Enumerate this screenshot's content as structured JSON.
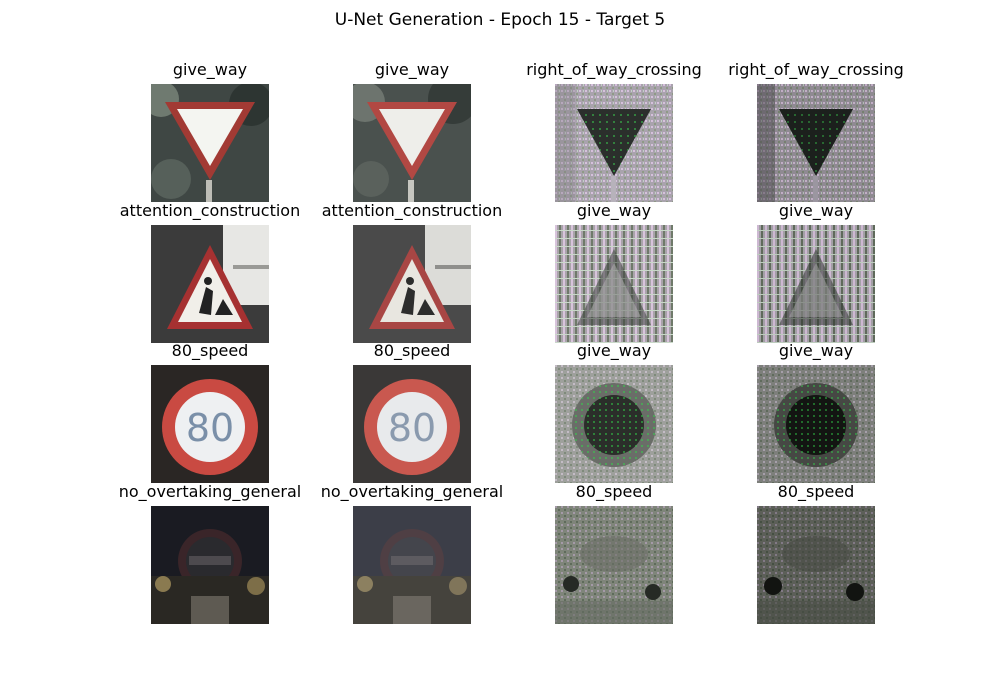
{
  "figure": {
    "title": "U-Net Generation - Epoch 15 - Target 5"
  },
  "rows": [
    {
      "labels": [
        "give_way",
        "give_way",
        "right_of_way_crossing",
        "right_of_way_crossing"
      ],
      "images": [
        "give-way-sign-original",
        "give-way-sign-reconstructed",
        "generated-noisy-triangle",
        "generated-noisy-triangle-dark"
      ]
    },
    {
      "labels": [
        "attention_construction",
        "attention_construction",
        "give_way",
        "give_way"
      ],
      "images": [
        "construction-sign-original",
        "construction-sign-reconstructed",
        "generated-noisy-triangle-stripes",
        "generated-noisy-triangle-stripes-2"
      ]
    },
    {
      "labels": [
        "80_speed",
        "80_speed",
        "give_way",
        "give_way"
      ],
      "images": [
        "speed-80-sign-original",
        "speed-80-sign-reconstructed",
        "generated-noisy-circle",
        "generated-noisy-circle-dark"
      ]
    },
    {
      "labels": [
        "no_overtaking_general",
        "no_overtaking_general",
        "80_speed",
        "80_speed"
      ],
      "images": [
        "no-overtaking-sign-original",
        "no-overtaking-sign-reconstructed",
        "generated-noisy-dim",
        "generated-noisy-dim-dark"
      ]
    }
  ]
}
